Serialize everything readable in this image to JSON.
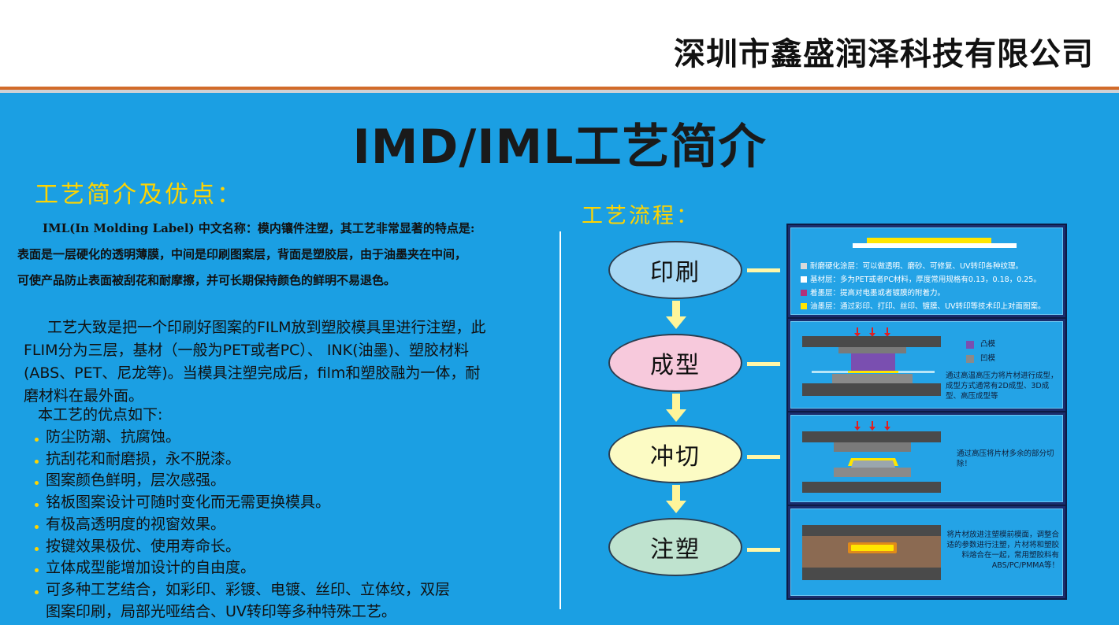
{
  "header": {
    "company": "深圳市鑫盛润泽科技有限公司"
  },
  "title": "IMD/IML工艺简介",
  "left": {
    "heading": "工艺简介及优点：",
    "intro": [
      "IML(In Molding Label) 中文名称：模内镶件注塑，其工艺非常显著的特点是:",
      "表面是一层硬化的透明薄膜，中间是印刷图案层，背面是塑胶层，由于油墨夹在中间，",
      "可使产品防止表面被刮花和耐摩擦，并可长期保持颜色的鲜明不易退色。"
    ],
    "paragraph": [
      "工艺大致是把一个印刷好图案的FILM放到塑胶模具里进行注塑，此",
      "FLIM分为三层，基材（一般为PET或者PC）、 INK(油墨)、塑胶材料",
      "(ABS、PET、尼龙等)。当模具注塑完成后，film和塑胶融为一体，耐",
      "磨材料在最外面。"
    ],
    "advantages_heading": "本工艺的优点如下:",
    "advantages": [
      "防尘防潮、抗腐蚀。",
      "抗刮花和耐磨损，永不脱漆。",
      "图案颜色鲜明，层次感强。",
      "铭板图案设计可随时变化而无需更换模具。",
      "有极高透明度的视窗效果。",
      "按键效果极优、使用寿命长。",
      "立体成型能增加设计的自由度。",
      "可多种工艺结合，如彩印、彩镀、电镀、丝印、立体纹，双层"
    ],
    "advantages_cont": "图案印刷，局部光哑结合、UV转印等多种特殊工艺。"
  },
  "flow": {
    "heading": "工艺流程：",
    "steps": [
      {
        "label": "印刷",
        "fill": "#a8d8f4"
      },
      {
        "label": "成型",
        "fill": "#f7c9dc"
      },
      {
        "label": "冲切",
        "fill": "#fcfbc4"
      },
      {
        "label": "注塑",
        "fill": "#bfe3cf"
      }
    ],
    "panel1": {
      "rows": [
        {
          "color": "#d9d9d9",
          "text": "耐磨硬化涂层：可以做透明、磨砂、可修复、UV转印各种纹理。"
        },
        {
          "color": "#ffffff",
          "text": "基材层：多为PET或者PC材料，厚度常用规格有0.13，0.18，0.25。"
        },
        {
          "color": "#b0327a",
          "text": "着墨层：提高对电墨或者镀膜的附着力。"
        },
        {
          "color": "#ffe600",
          "text": "油墨层：通过彩印、打印、丝印、镀膜、UV转印等技术印上对面图案。"
        }
      ]
    },
    "panel2": {
      "legend": [
        {
          "color": "#7a4fb0",
          "text": "凸模"
        },
        {
          "color": "#8a8a8a",
          "text": "凹模"
        }
      ],
      "text": "通过高温高压力将片材进行成型，成型方式通常有2D成型、3D成型、高压成型等"
    },
    "panel3": {
      "text": "通过高压将片材多余的部分切除！"
    },
    "panel4": {
      "text": "将片材放进注塑模前模面，调整合适的参数进行注塑，片材将和塑胶料熔合在一起，常用塑胶料有ABS/PC/PMMA等！"
    }
  }
}
